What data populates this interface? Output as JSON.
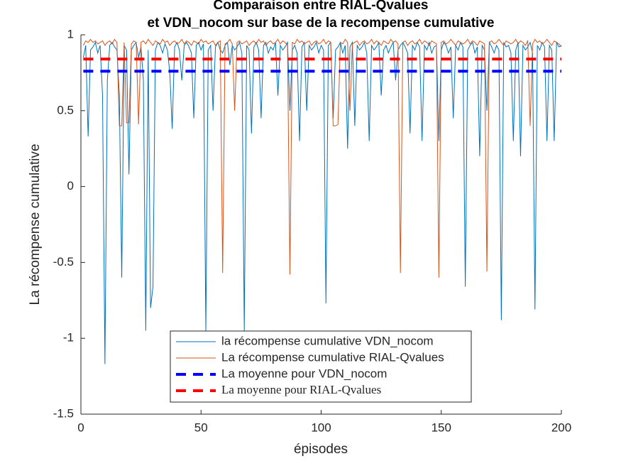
{
  "chart_data": {
    "type": "line",
    "title": [
      "Comparaison entre RIAL-Qvalues",
      "et VDN_nocom sur base de la recompense cumulative"
    ],
    "xlabel": "épisodes",
    "ylabel": "La récompense cumulative",
    "x": [
      1,
      2,
      3,
      4,
      5,
      6,
      7,
      8,
      9,
      10,
      11,
      12,
      13,
      14,
      15,
      16,
      17,
      18,
      19,
      20,
      21,
      22,
      23,
      24,
      25,
      26,
      27,
      28,
      29,
      30,
      31,
      32,
      33,
      34,
      35,
      36,
      37,
      38,
      39,
      40,
      41,
      42,
      43,
      44,
      45,
      46,
      47,
      48,
      49,
      50,
      51,
      52,
      53,
      54,
      55,
      56,
      57,
      58,
      59,
      60,
      61,
      62,
      63,
      64,
      65,
      66,
      67,
      68,
      69,
      70,
      71,
      72,
      73,
      74,
      75,
      76,
      77,
      78,
      79,
      80,
      81,
      82,
      83,
      84,
      85,
      86,
      87,
      88,
      89,
      90,
      91,
      92,
      93,
      94,
      95,
      96,
      97,
      98,
      99,
      100,
      101,
      102,
      103,
      104,
      105,
      106,
      107,
      108,
      109,
      110,
      111,
      112,
      113,
      114,
      115,
      116,
      117,
      118,
      119,
      120,
      121,
      122,
      123,
      124,
      125,
      126,
      127,
      128,
      129,
      130,
      131,
      132,
      133,
      134,
      135,
      136,
      137,
      138,
      139,
      140,
      141,
      142,
      143,
      144,
      145,
      146,
      147,
      148,
      149,
      150,
      151,
      152,
      153,
      154,
      155,
      156,
      157,
      158,
      159,
      160,
      161,
      162,
      163,
      164,
      165,
      166,
      167,
      168,
      169,
      170,
      171,
      172,
      173,
      174,
      175,
      176,
      177,
      178,
      179,
      180,
      181,
      182,
      183,
      184,
      185,
      186,
      187,
      188,
      189,
      190,
      191,
      192,
      193,
      194,
      195,
      196,
      197,
      198,
      199,
      200
    ],
    "series": [
      {
        "name": "la récompense cumulative VDN_nocom",
        "color": "#0072bd",
        "values": [
          0.85,
          0.93,
          0.33,
          0.9,
          0.92,
          0.95,
          0.88,
          0.93,
          0.6,
          -1.17,
          0.7,
          0.93,
          0.95,
          0.92,
          0.9,
          0.6,
          -0.6,
          0.93,
          0.9,
          0.08,
          0.9,
          0.93,
          0.95,
          0.85,
          0.92,
          0.7,
          -0.95,
          0.9,
          -0.8,
          -0.66,
          0.9,
          0.95,
          0.93,
          0.88,
          0.94,
          0.9,
          0.75,
          0.38,
          0.92,
          0.95,
          0.9,
          0.7,
          0.93,
          0.95,
          0.92,
          0.88,
          0.45,
          0.93,
          0.95,
          0.9,
          0.94,
          -0.95,
          0.9,
          0.93,
          0.5,
          0.92,
          0.95,
          0.9,
          0.88,
          0.93,
          0.95,
          0.8,
          0.93,
          0.9,
          0.92,
          0.95,
          0.88,
          -0.95,
          0.93,
          0.9,
          0.35,
          0.92,
          0.95,
          0.9,
          0.45,
          0.93,
          0.95,
          0.88,
          0.92,
          0.9,
          0.95,
          0.6,
          0.93,
          0.9,
          0.92,
          0.95,
          0.5,
          0.9,
          0.93,
          0.88,
          0.3,
          0.92,
          0.95,
          0.5,
          0.93,
          0.9,
          0.92,
          0.95,
          0.88,
          0.93,
          0.9,
          -0.77,
          0.93,
          0.95,
          0.45,
          0.9,
          0.92,
          0.95,
          0.88,
          0.93,
          0.25,
          0.92,
          0.95,
          0.4,
          0.93,
          0.9,
          0.92,
          0.95,
          0.88,
          0.3,
          0.93,
          0.9,
          0.92,
          0.95,
          0.6,
          0.9,
          0.93,
          0.88,
          0.92,
          0.95,
          0.7,
          0.9,
          0.93,
          0.95,
          0.92,
          0.88,
          0.35,
          0.93,
          0.9,
          0.95,
          0.92,
          0.3,
          0.93,
          0.9,
          0.95,
          0.88,
          0.92,
          0.93,
          0.3,
          0.9,
          0.95,
          0.93,
          0.88,
          0.92,
          0.45,
          0.93,
          0.9,
          0.95,
          0.92,
          -0.66,
          0.9,
          0.93,
          0.95,
          0.88,
          0.92,
          0.2,
          0.93,
          0.9,
          0.5,
          0.95,
          0.92,
          0.88,
          0.93,
          0.9,
          -0.88,
          0.95,
          0.92,
          0.93,
          0.88,
          0.3,
          0.9,
          0.95,
          0.2,
          0.93,
          0.9,
          0.92,
          0.95,
          0.88,
          -0.81,
          0.93,
          0.9,
          0.95,
          0.92,
          0.3,
          0.93,
          0.9,
          0.3,
          0.95,
          0.92,
          0.93
        ]
      },
      {
        "name": "La récompense cumulative RIAL-Qvalues",
        "color": "#d95319",
        "values": [
          0.93,
          0.96,
          0.95,
          0.97,
          0.95,
          0.96,
          0.94,
          0.95,
          0.96,
          0.93,
          0.95,
          0.96,
          0.94,
          0.97,
          0.95,
          0.4,
          0.4,
          0.95,
          0.42,
          0.42,
          0.94,
          0.96,
          0.95,
          0.41,
          0.95,
          0.96,
          0.94,
          0.97,
          0.95,
          0.93,
          0.96,
          0.95,
          0.94,
          0.97,
          0.95,
          0.96,
          0.93,
          0.95,
          0.96,
          0.94,
          0.95,
          0.97,
          0.94,
          0.96,
          0.95,
          0.93,
          0.96,
          0.95,
          0.94,
          0.97,
          0.95,
          0.96,
          0.94,
          0.95,
          0.96,
          0.93,
          0.95,
          0.96,
          -0.57,
          0.94,
          0.95,
          0.97,
          0.94,
          0.5,
          0.95,
          0.96,
          0.94,
          0.95,
          0.96,
          0.93,
          0.95,
          0.96,
          0.94,
          0.97,
          0.95,
          0.96,
          0.93,
          0.95,
          0.96,
          0.94,
          0.95,
          0.97,
          0.94,
          0.96,
          0.95,
          0.93,
          -0.58,
          0.95,
          0.94,
          0.97,
          0.95,
          0.96,
          0.94,
          0.95,
          0.96,
          0.93,
          0.95,
          0.96,
          0.94,
          0.95,
          0.97,
          0.94,
          0.96,
          0.95,
          0.4,
          0.4,
          0.41,
          0.95,
          0.94,
          0.97,
          0.95,
          0.5,
          0.94,
          0.95,
          0.96,
          0.93,
          0.95,
          0.96,
          0.94,
          0.95,
          0.97,
          0.94,
          0.96,
          0.95,
          0.93,
          0.96,
          0.95,
          0.94,
          0.97,
          0.95,
          0.96,
          0.94,
          -0.57,
          0.95,
          0.96,
          0.93,
          0.95,
          0.96,
          0.94,
          0.95,
          0.97,
          0.94,
          0.96,
          0.95,
          0.93,
          0.96,
          0.95,
          0.94,
          -0.6,
          0.95,
          0.96,
          0.94,
          0.95,
          0.97,
          0.95,
          0.93,
          0.96,
          0.95,
          0.94,
          0.95,
          0.97,
          0.94,
          0.96,
          0.95,
          0.93,
          0.96,
          0.95,
          0.94,
          -0.56,
          0.95,
          0.96,
          0.94,
          0.95,
          0.97,
          0.95,
          0.93,
          0.96,
          0.95,
          0.94,
          0.95,
          0.97,
          0.94,
          0.96,
          0.95,
          0.93,
          0.96,
          0.4,
          0.94,
          0.97,
          0.95,
          0.96,
          0.94,
          0.95,
          0.97,
          0.95,
          0.93,
          0.96,
          0.95,
          0.94,
          0.92
        ]
      },
      {
        "name": "La moyenne pour VDN_nocom",
        "color": "#0000ff",
        "mean": 0.76
      },
      {
        "name": "La moyenne pour RIAL-Qvalues",
        "color": "#ff0000",
        "mean": 0.84
      }
    ],
    "xlim": [
      0,
      200
    ],
    "xticks": [
      0,
      50,
      100,
      150,
      200
    ],
    "ylim": [
      -1.5,
      1
    ],
    "yticks": [
      -1.5,
      -1,
      -0.5,
      0,
      0.5,
      1
    ]
  }
}
